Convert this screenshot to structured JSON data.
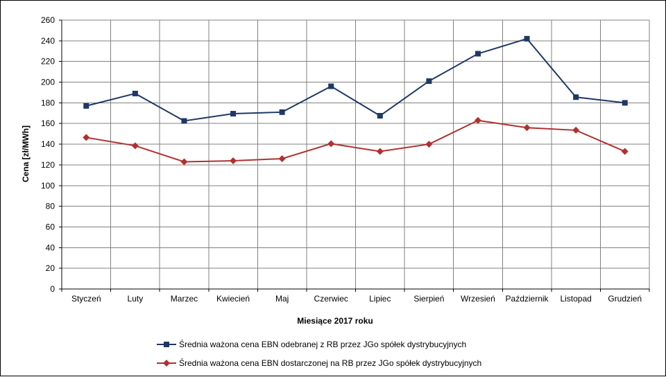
{
  "chart_data": {
    "type": "line",
    "xlabel": "Miesiące 2017  roku",
    "ylabel": "Cena [zł/MWh]",
    "ylim": [
      0,
      260
    ],
    "yticks": [
      0,
      20,
      40,
      60,
      80,
      100,
      120,
      140,
      160,
      180,
      200,
      220,
      240,
      260
    ],
    "grid": true,
    "legend_position": "bottom",
    "categories": [
      "Styczeń",
      "Luty",
      "Marzec",
      "Kwiecień",
      "Maj",
      "Czerwiec",
      "Lipiec",
      "Sierpień",
      "Wrzesień",
      "Październik",
      "Listopad",
      "Grudzień"
    ],
    "series": [
      {
        "name": "Średnia ważona cena EBN odebranej z RB przez JGo spółek dystrybucyjnych",
        "color": "#1f3864",
        "marker": "square",
        "values": [
          177,
          189,
          162.5,
          169.5,
          171,
          196,
          167.5,
          201,
          227.5,
          242,
          185.5,
          180
        ]
      },
      {
        "name": "Średnia ważona cena EBN dostarczonej na RB przez JGo spółek dystrybucyjnych",
        "color": "#b03030",
        "marker": "diamond",
        "values": [
          146.5,
          138.5,
          123,
          124,
          126,
          140.5,
          133,
          140,
          163,
          156,
          153.5,
          133
        ]
      }
    ]
  }
}
